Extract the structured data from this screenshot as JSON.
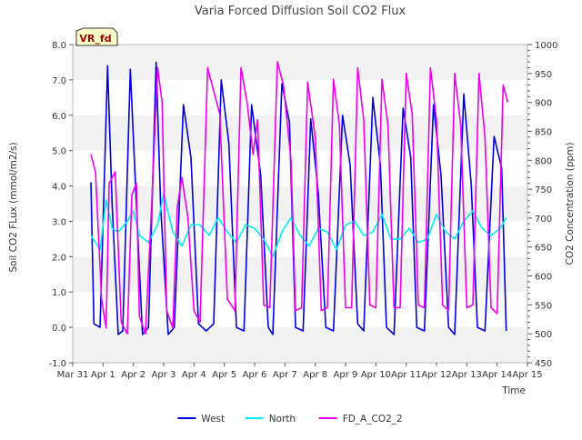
{
  "chart_data": {
    "type": "line",
    "title": "Varia Forced Diffusion Soil CO2 Flux",
    "site_label": "VR_fd",
    "xlabel": "Time",
    "ylabel_left": "Soil CO2 FLux (mmol/m2/s)",
    "ylabel_right": "CO2 Concentration (ppm)",
    "ylim_left": [
      -1.0,
      8.0
    ],
    "ylim_right": [
      450,
      1000
    ],
    "left_ticks": [
      -1.0,
      0.0,
      1.0,
      2.0,
      3.0,
      4.0,
      5.0,
      6.0,
      7.0,
      8.0
    ],
    "left_tick_labels": [
      "-1.0",
      "0.0",
      "1.0",
      "2.0",
      "3.0",
      "4.0",
      "5.0",
      "6.0",
      "7.0",
      "8.0"
    ],
    "right_ticks": [
      450,
      500,
      550,
      600,
      650,
      700,
      750,
      800,
      850,
      900,
      950,
      1000
    ],
    "right_tick_labels": [
      "450",
      "500",
      "550",
      "600",
      "650",
      "700",
      "750",
      "800",
      "850",
      "900",
      "950",
      "1000"
    ],
    "xlim": [
      0,
      15
    ],
    "x_ticks": [
      0,
      1,
      2,
      3,
      4,
      5,
      6,
      7,
      8,
      9,
      10,
      11,
      12,
      13,
      14,
      15
    ],
    "x_tick_labels": [
      "Mar 31",
      "Apr 1",
      "Apr 2",
      "Apr 3",
      "Apr 4",
      "Apr 5",
      "Apr 6",
      "Apr 7",
      "Apr 8",
      "Apr 9",
      "Apr 10",
      "Apr 11",
      "Apr 12",
      "Apr 13",
      "Apr 14",
      "Apr 15"
    ],
    "grid_bands": true,
    "legend_position": "bottom-center",
    "series": [
      {
        "name": "West",
        "color": "#0000dd",
        "axis": "left",
        "x": [
          0.6,
          0.7,
          0.9,
          1.15,
          1.3,
          1.5,
          1.65,
          1.9,
          2.15,
          2.3,
          2.5,
          2.75,
          2.9,
          3.15,
          3.35,
          3.65,
          3.9,
          4.15,
          4.4,
          4.65,
          4.9,
          5.15,
          5.4,
          5.65,
          5.9,
          6.2,
          6.45,
          6.6,
          6.9,
          7.15,
          7.35,
          7.6,
          7.85,
          8.1,
          8.35,
          8.6,
          8.9,
          9.15,
          9.4,
          9.6,
          9.9,
          10.15,
          10.35,
          10.6,
          10.9,
          11.15,
          11.35,
          11.6,
          11.9,
          12.15,
          12.4,
          12.6,
          12.9,
          13.15,
          13.35,
          13.6,
          13.9,
          14.15,
          14.3
        ],
        "y": [
          4.1,
          0.1,
          0.0,
          7.4,
          3.5,
          -0.2,
          -0.1,
          7.3,
          2.5,
          -0.2,
          0.0,
          7.5,
          3.4,
          -0.2,
          0.0,
          6.3,
          4.8,
          0.1,
          -0.1,
          0.1,
          7.0,
          5.2,
          0.0,
          -0.1,
          6.3,
          4.3,
          0.0,
          -0.2,
          6.9,
          5.8,
          0.0,
          -0.1,
          5.9,
          3.8,
          0.0,
          -0.1,
          6.0,
          4.6,
          0.1,
          -0.1,
          6.5,
          4.6,
          0.0,
          -0.2,
          6.2,
          4.8,
          0.0,
          -0.1,
          6.3,
          4.3,
          0.0,
          -0.2,
          6.6,
          4.0,
          0.0,
          -0.1,
          5.4,
          4.5,
          -0.1
        ]
      },
      {
        "name": "North",
        "color": "#00eeee",
        "axis": "left",
        "x": [
          0.6,
          0.9,
          1.1,
          1.3,
          1.5,
          1.8,
          2.0,
          2.2,
          2.5,
          2.8,
          3.0,
          3.3,
          3.6,
          3.9,
          4.2,
          4.5,
          4.8,
          5.1,
          5.4,
          5.7,
          6.0,
          6.3,
          6.6,
          6.9,
          7.2,
          7.5,
          7.8,
          8.1,
          8.4,
          8.7,
          9.0,
          9.3,
          9.6,
          9.9,
          10.2,
          10.5,
          10.8,
          11.1,
          11.4,
          11.7,
          12.0,
          12.3,
          12.6,
          12.9,
          13.2,
          13.5,
          13.8,
          14.1,
          14.3
        ],
        "y": [
          2.6,
          2.2,
          3.6,
          2.8,
          2.7,
          3.0,
          3.3,
          2.6,
          2.4,
          2.9,
          3.8,
          2.7,
          2.3,
          2.9,
          2.9,
          2.6,
          3.1,
          2.7,
          2.4,
          2.9,
          2.8,
          2.5,
          2.0,
          2.7,
          3.1,
          2.6,
          2.3,
          2.8,
          2.7,
          2.2,
          2.9,
          3.0,
          2.6,
          2.7,
          3.2,
          2.5,
          2.5,
          2.8,
          2.4,
          2.5,
          3.2,
          2.7,
          2.5,
          3.0,
          3.3,
          2.8,
          2.6,
          2.8,
          3.1
        ]
      },
      {
        "name": "FD_A_CO2_2",
        "color": "#ee00ee",
        "axis": "right",
        "x": [
          0.6,
          0.75,
          0.95,
          1.1,
          1.2,
          1.4,
          1.6,
          1.8,
          1.95,
          2.1,
          2.2,
          2.4,
          2.6,
          2.8,
          2.95,
          3.1,
          3.3,
          3.45,
          3.6,
          3.8,
          4.0,
          4.2,
          4.45,
          4.65,
          4.85,
          5.1,
          5.35,
          5.55,
          5.75,
          5.95,
          6.1,
          6.3,
          6.5,
          6.75,
          6.95,
          7.2,
          7.35,
          7.55,
          7.75,
          8.0,
          8.2,
          8.4,
          8.6,
          8.8,
          9.0,
          9.2,
          9.4,
          9.6,
          9.8,
          10.0,
          10.2,
          10.4,
          10.6,
          10.8,
          11.0,
          11.2,
          11.4,
          11.6,
          11.8,
          12.0,
          12.2,
          12.4,
          12.6,
          12.8,
          13.0,
          13.2,
          13.4,
          13.6,
          13.8,
          14.0,
          14.2,
          14.35
        ],
        "y": [
          810,
          780,
          560,
          510,
          760,
          780,
          520,
          500,
          740,
          760,
          530,
          500,
          720,
          960,
          900,
          540,
          510,
          720,
          770,
          700,
          540,
          520,
          960,
          920,
          880,
          560,
          540,
          960,
          900,
          810,
          870,
          550,
          545,
          970,
          930,
          800,
          540,
          545,
          935,
          840,
          540,
          545,
          940,
          860,
          545,
          545,
          960,
          870,
          550,
          545,
          940,
          860,
          545,
          545,
          950,
          880,
          550,
          545,
          960,
          870,
          550,
          540,
          950,
          860,
          545,
          550,
          950,
          840,
          545,
          535,
          930,
          900
        ]
      }
    ]
  }
}
